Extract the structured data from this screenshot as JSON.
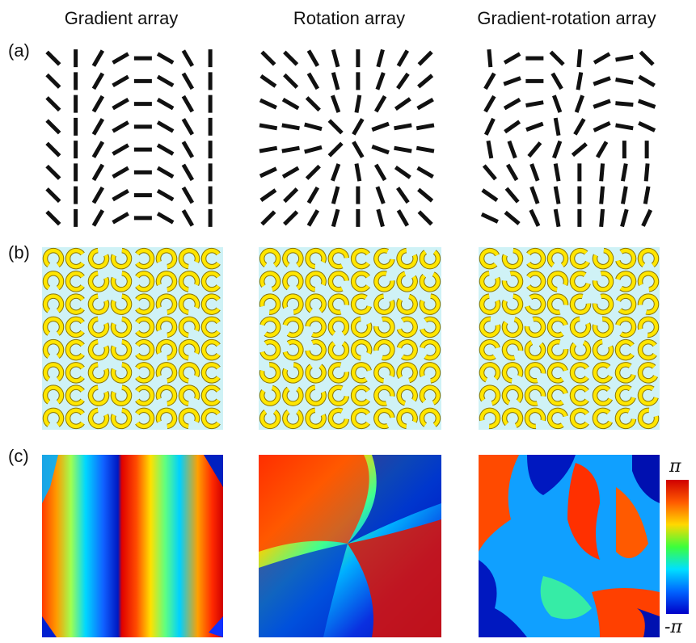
{
  "columns": [
    "Gradient array",
    "Rotation array",
    "Gradient-rotation array"
  ],
  "row_labels": [
    "(a)",
    "(b)",
    "(c)"
  ],
  "colorbar": {
    "max_label": "π",
    "min_label": "-π"
  },
  "colors": {
    "bar": "#111111",
    "ring": "#ffe600",
    "ring_stroke": "#8a7400",
    "substrate": "#cff2f6"
  },
  "arrays": {
    "gradient": [
      [
        45,
        0,
        -30,
        -60,
        -90,
        60,
        30,
        0
      ],
      [
        45,
        0,
        -30,
        -60,
        -90,
        60,
        30,
        0
      ],
      [
        45,
        0,
        -30,
        -60,
        -90,
        60,
        30,
        0
      ],
      [
        45,
        0,
        -30,
        -60,
        -90,
        60,
        30,
        0
      ],
      [
        45,
        0,
        -30,
        -60,
        -90,
        60,
        30,
        0
      ],
      [
        45,
        0,
        -30,
        -60,
        -90,
        60,
        30,
        0
      ],
      [
        45,
        0,
        -30,
        -60,
        -90,
        60,
        30,
        0
      ],
      [
        45,
        0,
        -30,
        -60,
        -90,
        60,
        30,
        0
      ]
    ],
    "rotation": [
      [
        45,
        45,
        30,
        15,
        0,
        -15,
        -30,
        -45
      ],
      [
        55,
        45,
        30,
        15,
        0,
        -20,
        -35,
        -50
      ],
      [
        65,
        60,
        45,
        20,
        -10,
        -30,
        -55,
        -60
      ],
      [
        80,
        80,
        75,
        45,
        -30,
        -70,
        -80,
        -80
      ],
      [
        -80,
        -80,
        -75,
        -45,
        30,
        70,
        80,
        80
      ],
      [
        -65,
        -60,
        -45,
        -20,
        10,
        30,
        55,
        60
      ],
      [
        -55,
        -45,
        -30,
        -15,
        0,
        20,
        35,
        50
      ],
      [
        -45,
        -45,
        -30,
        -15,
        0,
        15,
        30,
        45
      ]
    ],
    "gradient_rotation": [
      [
        5,
        -60,
        -90,
        45,
        -5,
        -60,
        -80,
        45
      ],
      [
        -30,
        -70,
        -90,
        30,
        -10,
        -70,
        80,
        60
      ],
      [
        -30,
        -60,
        -80,
        20,
        -20,
        -70,
        85,
        70
      ],
      [
        -25,
        -55,
        -70,
        10,
        -30,
        -65,
        80,
        65
      ],
      [
        10,
        20,
        -40,
        -20,
        -50,
        -30,
        0,
        0
      ],
      [
        40,
        30,
        20,
        10,
        0,
        -5,
        -10,
        -5
      ],
      [
        55,
        40,
        20,
        10,
        0,
        -5,
        -10,
        -10
      ],
      [
        65,
        50,
        25,
        10,
        0,
        -5,
        -15,
        -25
      ]
    ]
  }
}
